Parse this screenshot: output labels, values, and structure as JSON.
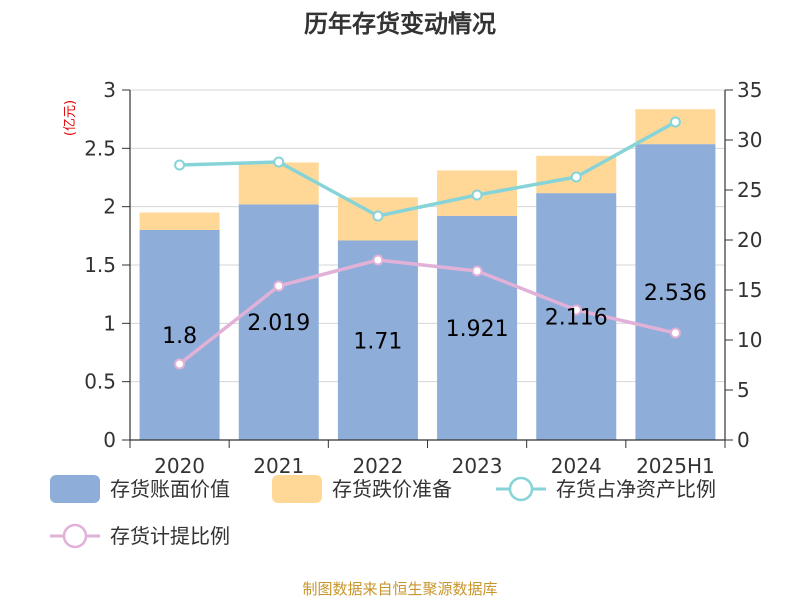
{
  "chart_data": {
    "type": "bar",
    "title": "历年存货变动情况",
    "left_unit": "(亿元)",
    "categories": [
      "2020",
      "2021",
      "2022",
      "2023",
      "2024",
      "2025H1"
    ],
    "left_ylim": [
      0,
      3
    ],
    "left_ticks": [
      "0",
      "0.5",
      "1",
      "1.5",
      "2",
      "2.5",
      "3"
    ],
    "right_ylim": [
      0,
      35
    ],
    "right_ticks": [
      "0",
      "5",
      "10",
      "15",
      "20",
      "25",
      "30",
      "35"
    ],
    "grid": true,
    "legend_position": "bottom",
    "series": [
      {
        "name": "存货账面价值",
        "kind": "bar-stacked",
        "axis": "left",
        "color": "#8eadd9",
        "values": [
          1.8,
          2.019,
          1.71,
          1.921,
          2.116,
          2.536
        ],
        "labels": [
          "1.8",
          "2.019",
          "1.71",
          "1.921",
          "2.116",
          "2.536"
        ]
      },
      {
        "name": "存货跌价准备",
        "kind": "bar-stacked",
        "axis": "left",
        "color": "#ffd898",
        "values": [
          0.15,
          0.36,
          0.37,
          0.39,
          0.32,
          0.3
        ]
      },
      {
        "name": "存货占净资产比例",
        "kind": "line",
        "axis": "right",
        "color": "#86d3d8",
        "values": [
          27.5,
          27.8,
          22.4,
          24.5,
          26.3,
          31.8
        ]
      },
      {
        "name": "存货计提比例",
        "kind": "line",
        "axis": "right",
        "color": "#e1b1d8",
        "values": [
          7.6,
          15.4,
          18,
          16.9,
          13,
          10.7
        ]
      }
    ]
  },
  "source": "制图数据来自恒生聚源数据库"
}
